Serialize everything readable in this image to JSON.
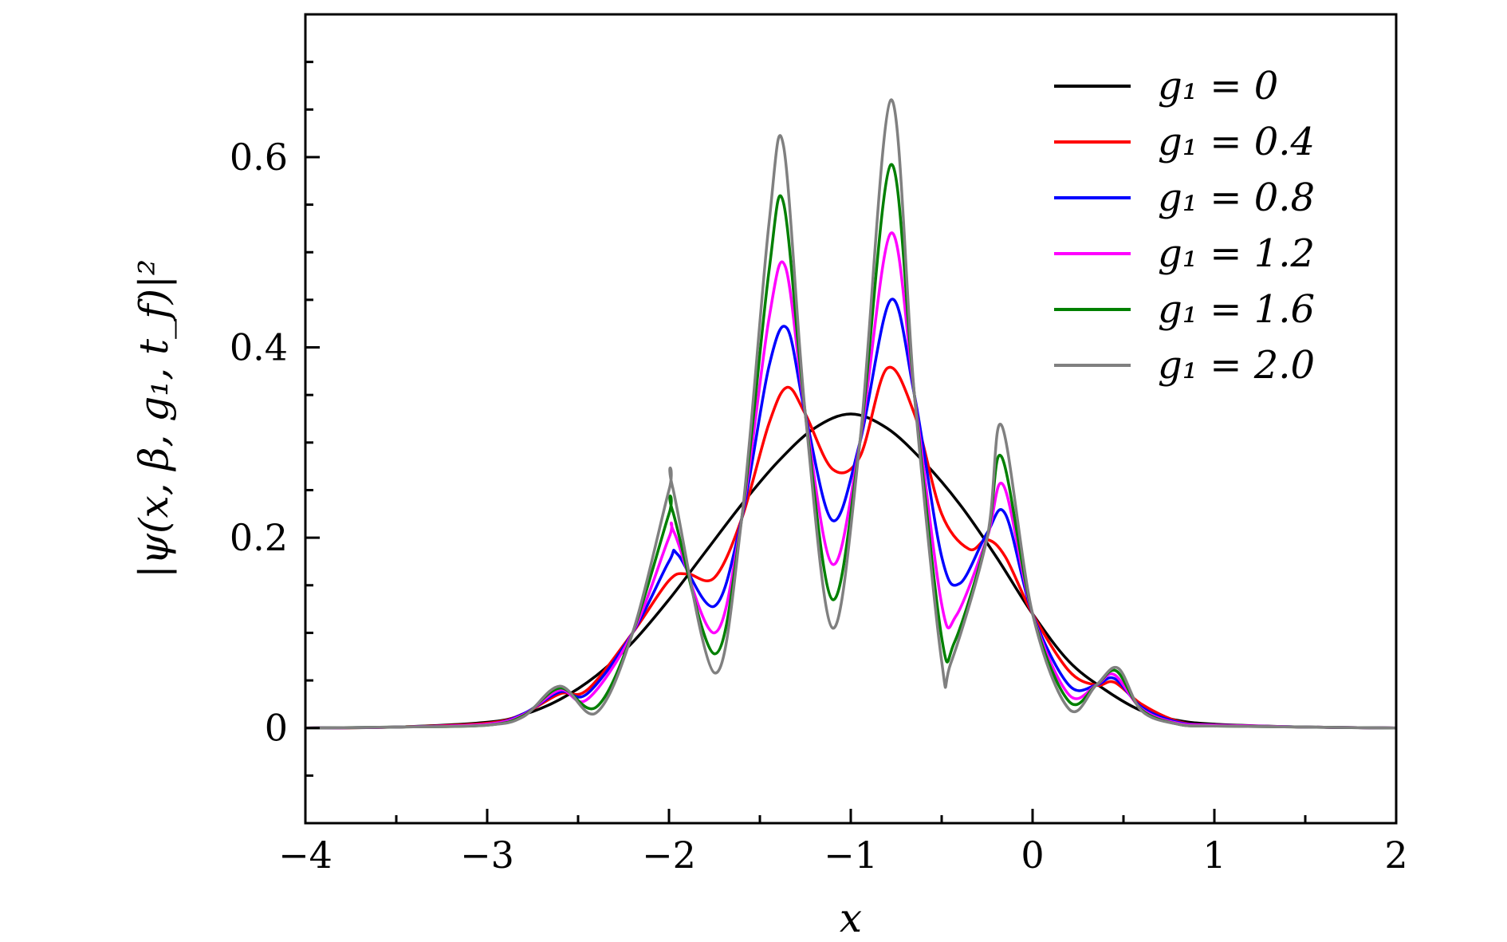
{
  "chart_data": {
    "type": "line",
    "xlabel": "x",
    "ylabel": "|ψ(x, β, g₁, t_f)|²",
    "xlim": [
      -4,
      2
    ],
    "ylim": [
      -0.1,
      0.75
    ],
    "x_ticks": [
      -4,
      -3,
      -2,
      -1,
      0,
      1,
      2
    ],
    "x_tick_labels": [
      "−4",
      "−3",
      "−2",
      "−1",
      "0",
      "1",
      "2"
    ],
    "y_ticks": [
      0,
      0.2,
      0.4,
      0.6
    ],
    "y_tick_labels": [
      "0",
      "0.2",
      "0.4",
      "0.6"
    ],
    "grid": false,
    "legend_position": "top-right",
    "series": [
      {
        "name": "g₁ = 0",
        "color": "#000000",
        "x": [
          -4,
          -3.5,
          -3,
          -2.8,
          -2.6,
          -2.4,
          -2.2,
          -2,
          -1.8,
          -1.6,
          -1.4,
          -1.2,
          -1,
          -0.8,
          -0.6,
          -0.4,
          -0.2,
          0,
          0.2,
          0.4,
          0.6,
          0.8,
          1,
          1.5,
          2
        ],
        "y": [
          0,
          0.001,
          0.006,
          0.014,
          0.03,
          0.055,
          0.09,
          0.135,
          0.185,
          0.235,
          0.28,
          0.315,
          0.33,
          0.315,
          0.28,
          0.235,
          0.18,
          0.12,
          0.07,
          0.04,
          0.018,
          0.008,
          0.004,
          0.001,
          0
        ]
      },
      {
        "name": "g₁ = 0.4",
        "color": "#ff0000",
        "x": [
          -4,
          -3.5,
          -3,
          -2.8,
          -2.6,
          -2.45,
          -2.2,
          -2.0,
          -1.9,
          -1.75,
          -1.6,
          -1.45,
          -1.35,
          -1.25,
          -1.1,
          -0.95,
          -0.8,
          -0.65,
          -0.5,
          -0.35,
          -0.25,
          -0.15,
          0,
          0.2,
          0.35,
          0.45,
          0.6,
          0.8,
          1,
          1.5,
          2
        ],
        "y": [
          0,
          0.001,
          0.005,
          0.015,
          0.036,
          0.04,
          0.1,
          0.155,
          0.162,
          0.158,
          0.22,
          0.32,
          0.358,
          0.33,
          0.272,
          0.285,
          0.378,
          0.33,
          0.225,
          0.188,
          0.198,
          0.18,
          0.12,
          0.06,
          0.045,
          0.048,
          0.025,
          0.007,
          0.003,
          0.001,
          0
        ]
      },
      {
        "name": "g₁ = 0.8",
        "color": "#0000ff",
        "x": [
          -4,
          -3.5,
          -3,
          -2.8,
          -2.6,
          -2.45,
          -2.2,
          -2.0,
          -1.95,
          -1.75,
          -1.6,
          -1.45,
          -1.35,
          -1.25,
          -1.1,
          -0.95,
          -0.78,
          -0.65,
          -0.5,
          -0.4,
          -0.25,
          -0.15,
          0,
          0.2,
          0.35,
          0.45,
          0.6,
          0.8,
          1,
          1.5,
          2
        ],
        "y": [
          0,
          0.001,
          0.004,
          0.015,
          0.038,
          0.036,
          0.1,
          0.175,
          0.182,
          0.128,
          0.22,
          0.38,
          0.42,
          0.33,
          0.218,
          0.3,
          0.45,
          0.35,
          0.18,
          0.152,
          0.205,
          0.225,
          0.12,
          0.045,
          0.045,
          0.052,
          0.022,
          0.006,
          0.003,
          0.001,
          0
        ]
      },
      {
        "name": "g₁ = 1.2",
        "color": "#ff00ff",
        "x": [
          -4,
          -3.5,
          -3,
          -2.8,
          -2.6,
          -2.45,
          -2.2,
          -2.0,
          -1.97,
          -1.75,
          -1.6,
          -1.45,
          -1.36,
          -1.25,
          -1.1,
          -0.95,
          -0.78,
          -0.65,
          -0.5,
          -0.42,
          -0.25,
          -0.16,
          0,
          0.2,
          0.35,
          0.45,
          0.6,
          0.8,
          1,
          1.5,
          2
        ],
        "y": [
          0,
          0.001,
          0.004,
          0.014,
          0.04,
          0.03,
          0.1,
          0.2,
          0.205,
          0.1,
          0.22,
          0.43,
          0.485,
          0.33,
          0.172,
          0.3,
          0.52,
          0.35,
          0.13,
          0.118,
          0.2,
          0.255,
          0.12,
          0.035,
          0.045,
          0.056,
          0.02,
          0.005,
          0.003,
          0.001,
          0
        ]
      },
      {
        "name": "g₁ = 1.6",
        "color": "#008000",
        "x": [
          -4,
          -3.5,
          -3,
          -2.8,
          -2.6,
          -2.4,
          -2.2,
          -2.0,
          -1.98,
          -1.75,
          -1.6,
          -1.45,
          -1.37,
          -1.25,
          -1.1,
          -0.95,
          -0.78,
          -0.65,
          -0.5,
          -0.43,
          -0.25,
          -0.17,
          0,
          0.2,
          0.35,
          0.46,
          0.6,
          0.8,
          1,
          1.5,
          2
        ],
        "y": [
          0,
          0.001,
          0.003,
          0.013,
          0.042,
          0.022,
          0.1,
          0.225,
          0.228,
          0.078,
          0.22,
          0.48,
          0.552,
          0.33,
          0.135,
          0.3,
          0.592,
          0.35,
          0.095,
          0.09,
          0.2,
          0.285,
          0.12,
          0.028,
          0.045,
          0.06,
          0.019,
          0.004,
          0.002,
          0.001,
          0
        ]
      },
      {
        "name": "g₁ = 2.0",
        "color": "#808080",
        "x": [
          -4,
          -3.5,
          -3,
          -2.8,
          -2.6,
          -2.4,
          -2.2,
          -2.0,
          -1.98,
          -1.75,
          -1.6,
          -1.45,
          -1.37,
          -1.25,
          -1.1,
          -0.95,
          -0.78,
          -0.65,
          -0.5,
          -0.45,
          -0.25,
          -0.17,
          0,
          0.2,
          0.35,
          0.47,
          0.6,
          0.8,
          1,
          1.5,
          2
        ],
        "y": [
          0,
          0.001,
          0.003,
          0.012,
          0.044,
          0.016,
          0.1,
          0.25,
          0.253,
          0.058,
          0.22,
          0.53,
          0.612,
          0.33,
          0.105,
          0.3,
          0.66,
          0.35,
          0.07,
          0.068,
          0.2,
          0.318,
          0.12,
          0.02,
          0.045,
          0.063,
          0.018,
          0.004,
          0.002,
          0.001,
          0
        ]
      }
    ]
  }
}
